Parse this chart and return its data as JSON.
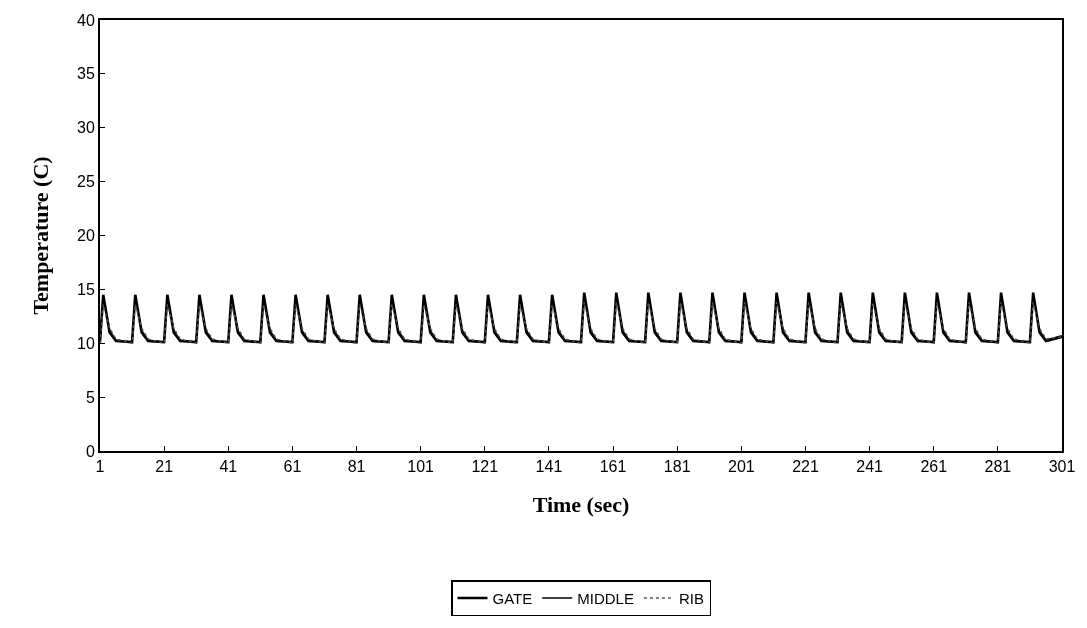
{
  "chart_data": {
    "type": "line",
    "xlabel": "Time (sec)",
    "ylabel": "Temperature (C)",
    "x": [
      1,
      2,
      4,
      6,
      11,
      12,
      14,
      16,
      21,
      22,
      24,
      26,
      31,
      32,
      34,
      36,
      41,
      42,
      44,
      46,
      51,
      52,
      54,
      56,
      61,
      62,
      64,
      66,
      71,
      72,
      74,
      76,
      81,
      82,
      84,
      86,
      91,
      92,
      94,
      96,
      101,
      102,
      104,
      106,
      111,
      112,
      114,
      116,
      121,
      122,
      124,
      126,
      131,
      132,
      134,
      136,
      141,
      142,
      144,
      146,
      151,
      152,
      154,
      156,
      161,
      162,
      164,
      166,
      171,
      172,
      174,
      176,
      181,
      182,
      184,
      186,
      191,
      192,
      194,
      196,
      201,
      202,
      204,
      206,
      211,
      212,
      214,
      216,
      221,
      222,
      224,
      226,
      231,
      232,
      234,
      236,
      241,
      242,
      244,
      246,
      251,
      252,
      254,
      256,
      261,
      262,
      264,
      266,
      271,
      272,
      274,
      276,
      281,
      282,
      284,
      286,
      291,
      292,
      294,
      296,
      301
    ],
    "series": [
      {
        "name": "GATE",
        "color": "#000000",
        "line_style": "solid",
        "values": [
          10.1,
          14.5,
          11,
          10.2,
          10.1,
          14.5,
          11,
          10.2,
          10.1,
          14.5,
          11,
          10.2,
          10.1,
          14.5,
          11,
          10.2,
          10.1,
          14.5,
          11,
          10.2,
          10.1,
          14.5,
          11,
          10.2,
          10.1,
          14.5,
          11,
          10.2,
          10.1,
          14.5,
          11,
          10.2,
          10.1,
          14.5,
          11,
          10.2,
          10.1,
          14.5,
          11,
          10.2,
          10.1,
          14.5,
          11,
          10.2,
          10.1,
          14.5,
          11,
          10.2,
          10.1,
          14.5,
          11,
          10.2,
          10.1,
          14.5,
          11,
          10.2,
          10.1,
          14.5,
          11,
          10.2,
          10.1,
          14.7,
          11,
          10.2,
          10.1,
          14.7,
          11,
          10.2,
          10.1,
          14.7,
          11,
          10.2,
          10.1,
          14.7,
          11,
          10.2,
          10.1,
          14.7,
          11,
          10.2,
          10.1,
          14.7,
          11,
          10.2,
          10.1,
          14.7,
          11,
          10.2,
          10.1,
          14.7,
          11,
          10.2,
          10.1,
          14.7,
          11,
          10.2,
          10.1,
          14.7,
          11,
          10.2,
          10.1,
          14.7,
          11,
          10.2,
          10.1,
          14.7,
          11,
          10.2,
          10.1,
          14.7,
          11,
          10.2,
          10.1,
          14.7,
          11,
          10.2,
          10.1,
          14.7,
          11,
          10.2,
          10.6
        ]
      },
      {
        "name": "MIDDLE",
        "color": "#000000",
        "line_style": "solid",
        "values": [
          10.1,
          14.3,
          11.2,
          10.3,
          10.1,
          14.3,
          11.2,
          10.3,
          10.1,
          14.3,
          11.2,
          10.3,
          10.1,
          14.3,
          11.2,
          10.3,
          10.1,
          14.3,
          11.2,
          10.3,
          10.1,
          14.3,
          11.2,
          10.3,
          10.1,
          14.3,
          11.2,
          10.3,
          10.1,
          14.3,
          11.2,
          10.3,
          10.1,
          14.3,
          11.2,
          10.3,
          10.1,
          14.3,
          11.2,
          10.3,
          10.1,
          14.3,
          11.2,
          10.3,
          10.1,
          14.3,
          11.2,
          10.3,
          10.1,
          14.3,
          11.2,
          10.3,
          10.1,
          14.3,
          11.2,
          10.3,
          10.1,
          14.3,
          11.2,
          10.3,
          10.1,
          14.5,
          11.2,
          10.3,
          10.1,
          14.5,
          11.2,
          10.3,
          10.1,
          14.5,
          11.2,
          10.3,
          10.1,
          14.5,
          11.2,
          10.3,
          10.1,
          14.5,
          11.2,
          10.3,
          10.1,
          14.5,
          11.2,
          10.3,
          10.1,
          14.5,
          11.2,
          10.3,
          10.1,
          14.5,
          11.2,
          10.3,
          10.1,
          14.5,
          11.2,
          10.3,
          10.1,
          14.5,
          11.2,
          10.3,
          10.1,
          14.5,
          11.2,
          10.3,
          10.1,
          14.5,
          11.2,
          10.3,
          10.1,
          14.5,
          11.2,
          10.3,
          10.1,
          14.5,
          11.2,
          10.3,
          10.1,
          14.5,
          11.2,
          10.3,
          10.7
        ]
      },
      {
        "name": "RIB",
        "color": "#555555",
        "line_style": "dotted",
        "values": [
          10,
          13.6,
          11.4,
          10.4,
          10,
          13.6,
          11.4,
          10.4,
          10,
          13.6,
          11.4,
          10.4,
          10,
          13.6,
          11.4,
          10.4,
          10,
          13.6,
          11.4,
          10.4,
          10,
          13.6,
          11.4,
          10.4,
          10,
          13.6,
          11.4,
          10.4,
          10,
          13.6,
          11.4,
          10.4,
          10,
          13.6,
          11.4,
          10.4,
          10,
          13.6,
          11.4,
          10.4,
          10,
          13.6,
          11.4,
          10.4,
          10,
          13.6,
          11.4,
          10.4,
          10,
          13.6,
          11.4,
          10.4,
          10,
          13.6,
          11.4,
          10.4,
          10,
          13.6,
          11.4,
          10.4,
          10,
          13.8,
          11.4,
          10.4,
          10,
          13.8,
          11.4,
          10.4,
          10,
          13.8,
          11.4,
          10.4,
          10,
          13.8,
          11.4,
          10.4,
          10,
          13.8,
          11.4,
          10.4,
          10,
          13.8,
          11.4,
          10.4,
          10,
          13.8,
          11.4,
          10.4,
          10,
          13.8,
          11.4,
          10.4,
          10,
          13.8,
          11.4,
          10.4,
          10,
          13.8,
          11.4,
          10.4,
          10,
          13.8,
          11.4,
          10.4,
          10,
          13.8,
          11.4,
          10.4,
          10,
          13.8,
          11.4,
          10.4,
          10,
          13.8,
          11.4,
          10.4,
          10,
          13.8,
          11.4,
          10.4,
          10.6
        ]
      }
    ],
    "xlim": [
      1,
      301
    ],
    "xticks": [
      1,
      21,
      41,
      61,
      81,
      101,
      121,
      141,
      161,
      181,
      201,
      221,
      241,
      261,
      281,
      301
    ],
    "ylim": [
      0,
      40
    ],
    "yticks": [
      0,
      5,
      10,
      15,
      20,
      25,
      30,
      35,
      40
    ],
    "grid": false,
    "legend": "bottom",
    "marker": "none"
  }
}
